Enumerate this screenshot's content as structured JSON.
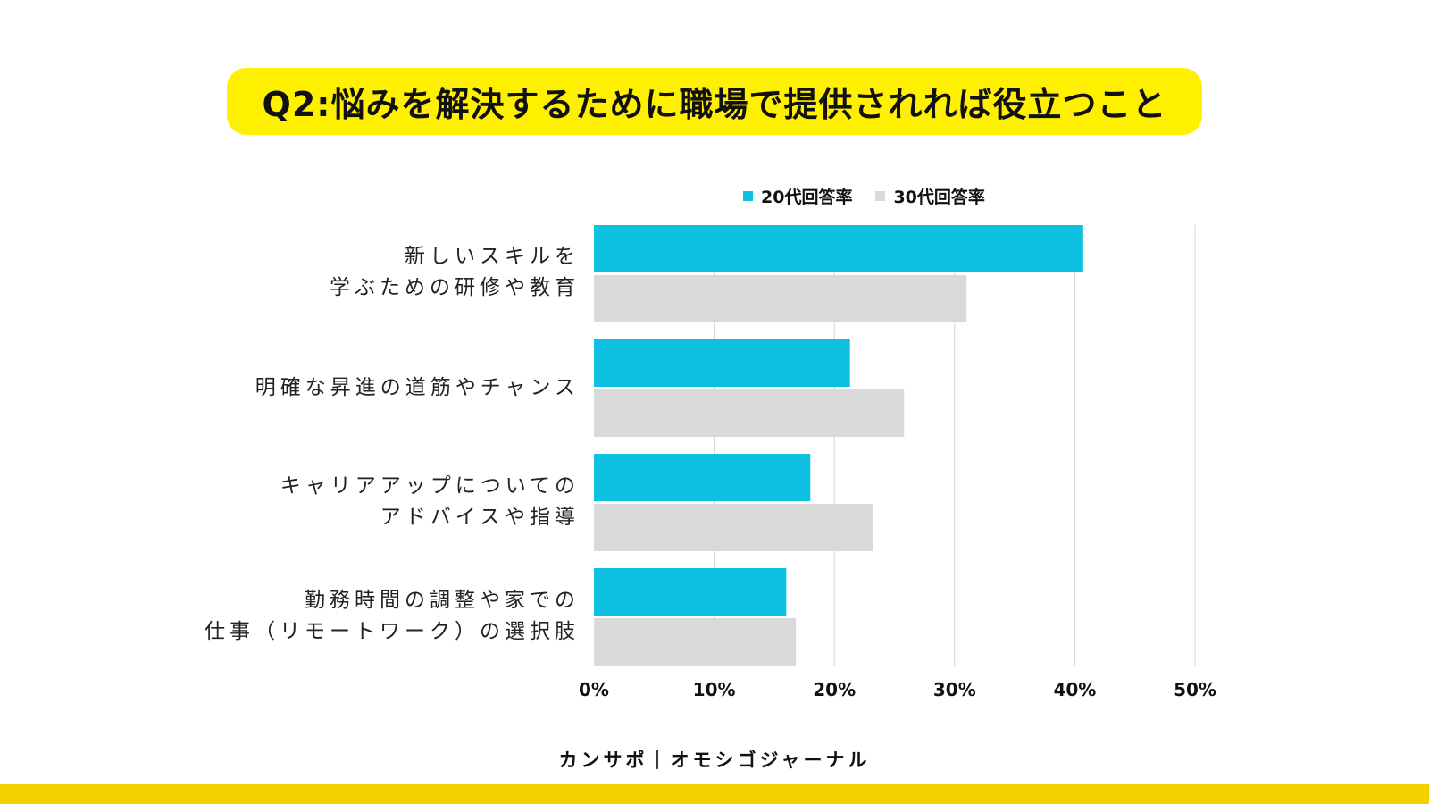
{
  "title": "Q2:悩みを解決するために職場で提供されれば役立つこと",
  "footer": "カンサポ｜オモシゴジャーナル",
  "colors": {
    "banner": "#fff000",
    "bottom_bar": "#f5d000",
    "series_20s": "#0ec1e0",
    "series_30s": "#d9d9d9"
  },
  "chart_data": {
    "type": "bar",
    "orientation": "horizontal",
    "title": "Q2:悩みを解決するために職場で提供されれば役立つこと",
    "categories": [
      [
        "新しいスキルを",
        "学ぶための研修や教育"
      ],
      [
        "明確な昇進の道筋やチャンス"
      ],
      [
        "キャリアアップについての",
        "アドバイスや指導"
      ],
      [
        "勤務時間の調整や家での",
        "仕事（リモートワーク）の選択肢"
      ]
    ],
    "series": [
      {
        "name": "20代回答率",
        "color": "#0ec1e0",
        "values": [
          40.7,
          21.3,
          18.0,
          16.0
        ]
      },
      {
        "name": "30代回答率",
        "color": "#d9d9d9",
        "values": [
          31.0,
          25.8,
          23.2,
          16.8
        ]
      }
    ],
    "xlim": [
      0,
      50
    ],
    "xticks": [
      0,
      10,
      20,
      30,
      40,
      50
    ],
    "xtick_labels": [
      "0%",
      "10%",
      "20%",
      "30%",
      "40%",
      "50%"
    ],
    "grid": true,
    "legend_position": "top"
  }
}
